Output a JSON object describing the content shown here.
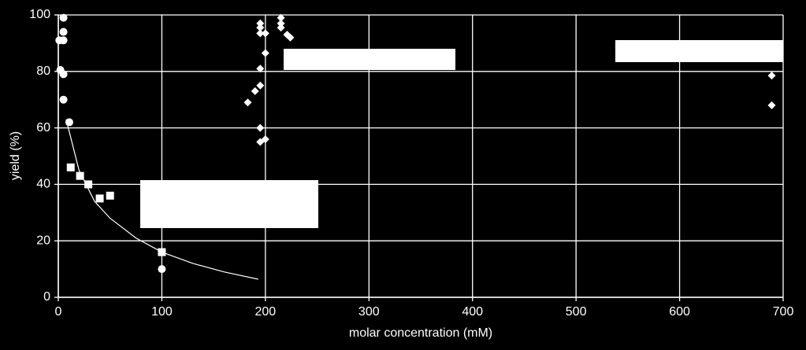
{
  "chart_data": {
    "type": "scatter",
    "xlabel": "molar concentration (mM)",
    "ylabel": "yield (%)",
    "xlim": [
      0,
      700
    ],
    "xticks": [
      0,
      100,
      200,
      300,
      400,
      500,
      600,
      700
    ],
    "ylim": [
      0,
      100
    ],
    "yticks": [
      0,
      20,
      40,
      60,
      80,
      100
    ],
    "grid": true,
    "series": [
      {
        "marker": "circle",
        "color": "#ffffff",
        "x": [
          1,
          5,
          5,
          5,
          2,
          5,
          5,
          10.6,
          100
        ],
        "values": [
          91,
          91,
          99,
          94,
          80.5,
          79,
          70,
          62,
          10
        ]
      },
      {
        "marker": "square",
        "color": "#ffffff",
        "x": [
          12,
          21,
          29,
          40,
          50,
          100
        ],
        "values": [
          46,
          43,
          40,
          35,
          36,
          16
        ]
      },
      {
        "marker": "diamond",
        "color": "#ffffff",
        "x": [
          183,
          190,
          195,
          195,
          195,
          195,
          195,
          200,
          200,
          195,
          195,
          200,
          215,
          215,
          215,
          221,
          224,
          689,
          689
        ],
        "values": [
          69,
          73,
          75,
          81,
          97,
          95.5,
          93.5,
          93.5,
          86.5,
          60,
          55,
          56,
          99,
          97,
          95.5,
          93,
          92,
          78.5,
          68
        ]
      },
      {
        "marker": "line",
        "color": "#ffffff",
        "x": [
          7.6,
          20,
          35,
          50,
          75,
          100,
          130,
          160,
          193
        ],
        "values": [
          63,
          45,
          34,
          28,
          21,
          16,
          12,
          9,
          6.4
        ]
      }
    ]
  }
}
